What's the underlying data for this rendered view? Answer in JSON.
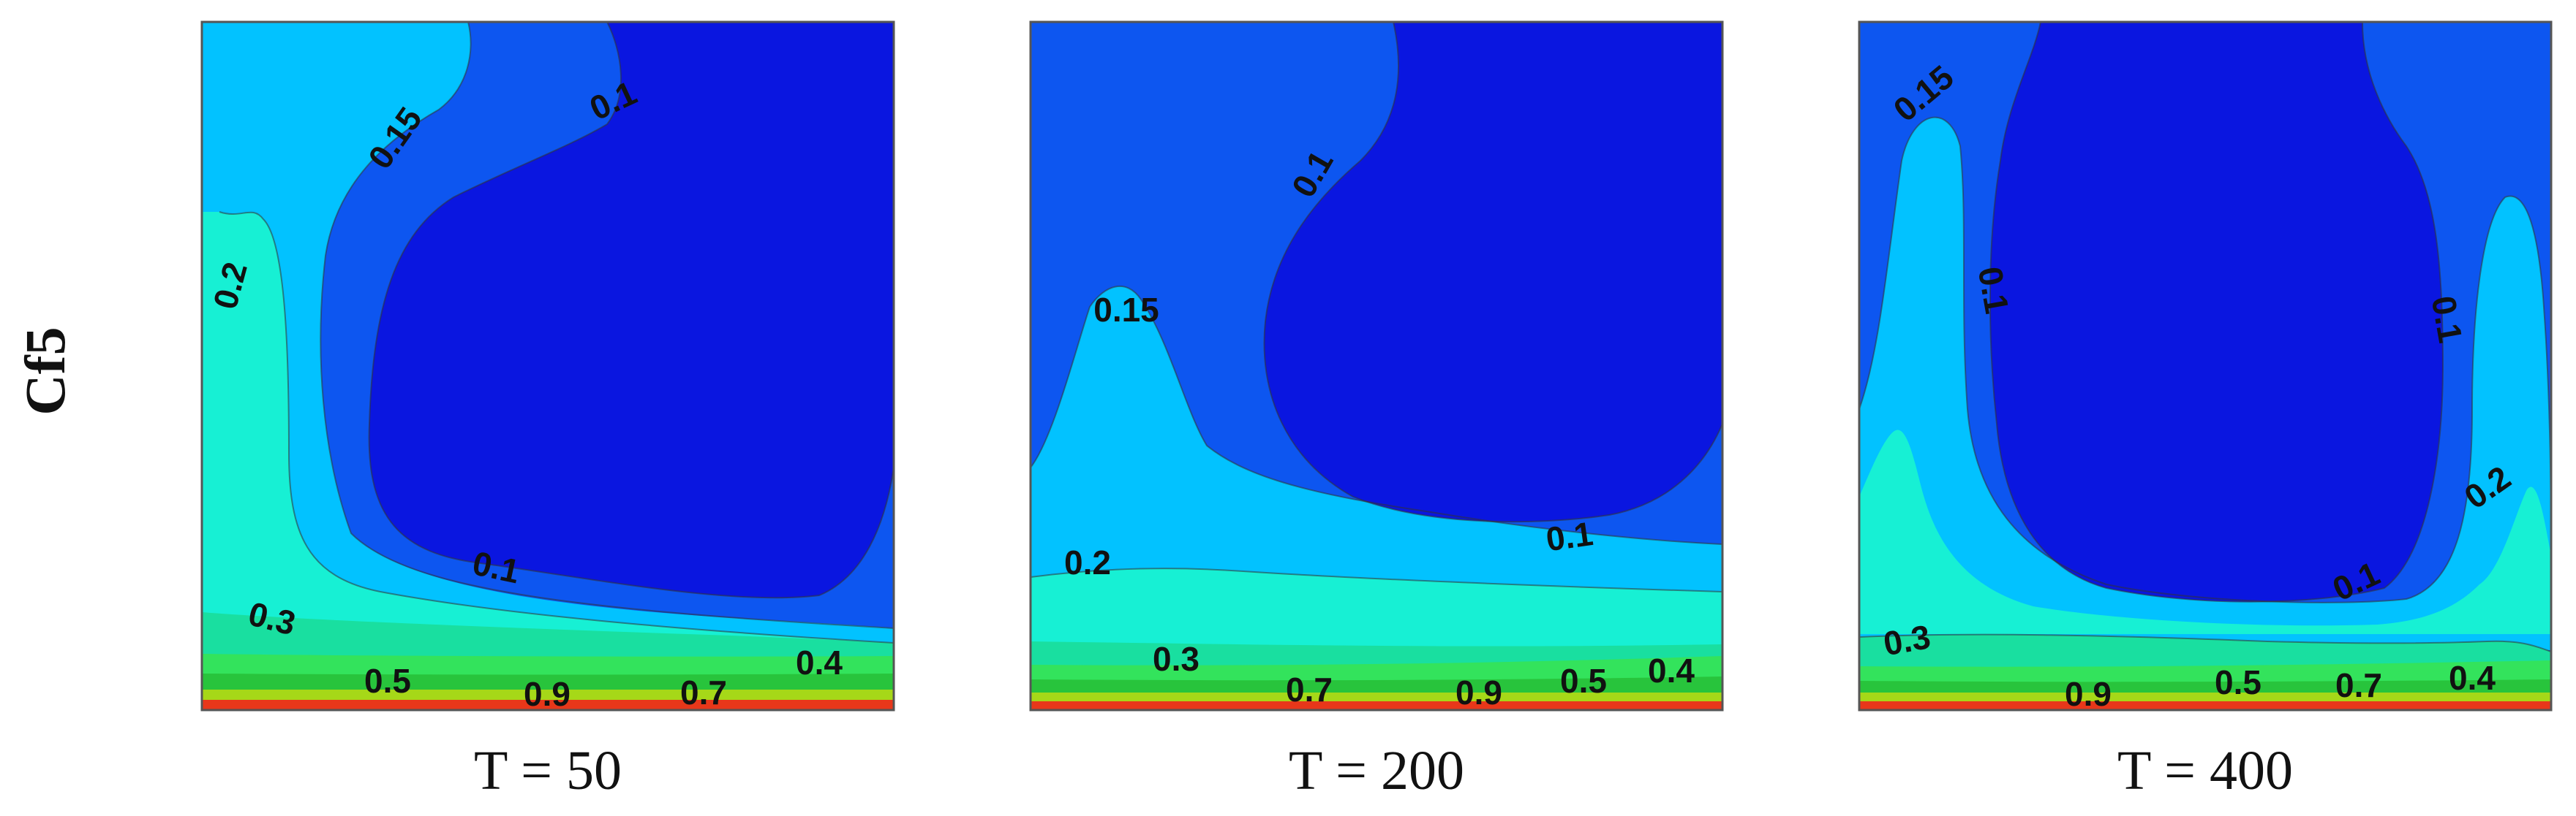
{
  "chart_data": {
    "type": "contour",
    "row_label": "Cf5",
    "levels": [
      0.1,
      0.15,
      0.2,
      0.3,
      0.4,
      0.5,
      0.7,
      0.9
    ],
    "colors": {
      "lt_0.1": "#0a16e0",
      "0.1_0.15": "#0d56f0",
      "0.15_0.2": "#02c2ff",
      "0.2_0.3": "#17f0d4",
      "0.3_0.4": "#19dfa0",
      "0.4_0.5": "#33e35c",
      "0.5_0.7": "#28c43c",
      "0.7_0.9": "#a6d818",
      "gt_0.9": "#e8371a"
    },
    "panels": [
      {
        "title": "T = 50",
        "contour_labels": [
          "0.1",
          "0.15",
          "0.2",
          "0.1",
          "0.3",
          "0.5",
          "0.9",
          "0.7",
          "0.4"
        ]
      },
      {
        "title": "T = 200",
        "contour_labels": [
          "0.1",
          "0.15",
          "0.1",
          "0.2",
          "0.3",
          "0.7",
          "0.9",
          "0.5",
          "0.4"
        ]
      },
      {
        "title": "T = 400",
        "contour_labels": [
          "0.15",
          "0.1",
          "0.1",
          "0.2",
          "0.1",
          "0.3",
          "0.9",
          "0.5",
          "0.7",
          "0.4"
        ]
      }
    ]
  }
}
